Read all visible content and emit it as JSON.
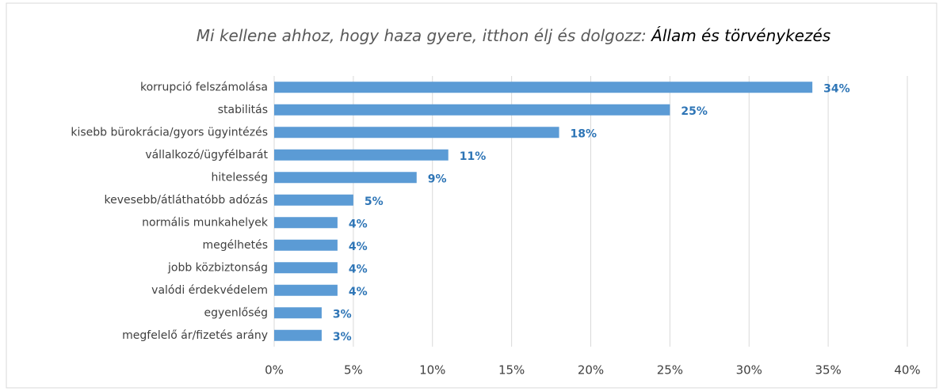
{
  "chart_data": {
    "type": "barh",
    "title": [
      "Mi kellene ahhoz, hogy haza gyere, itthon élj és dolgozz:",
      "Állam és törvénykezés"
    ],
    "categories": [
      "korrupció felszámolása",
      "stabilitás",
      "kisebb bürokrácia/gyors ügyintézés",
      "vállalkozó/ügyfélbarát",
      "hitelesség",
      "kevesebb/átláthatóbb adózás",
      "normális munkahelyek",
      "megélhetés",
      "jobb közbiztonság",
      "valódi érdekvédelem",
      "egyenlőség",
      "megfelelő ár/fizetés arány"
    ],
    "values": [
      34,
      25,
      18,
      11,
      9,
      5,
      4,
      4,
      4,
      4,
      3,
      3
    ],
    "value_labels": [
      "34%",
      "25%",
      "18%",
      "11%",
      "9%",
      "5%",
      "4%",
      "4%",
      "4%",
      "4%",
      "3%",
      "3%"
    ],
    "color": "#5b9bd5",
    "xlim": [
      0,
      40
    ],
    "xticks": [
      {
        "value": 0,
        "label": "0%"
      },
      {
        "value": 5,
        "label": "5%"
      },
      {
        "value": 10,
        "label": "10%"
      },
      {
        "value": 15,
        "label": "15%"
      },
      {
        "value": 20,
        "label": "20%"
      },
      {
        "value": 25,
        "label": "25%"
      },
      {
        "value": 30,
        "label": "30%"
      },
      {
        "value": 35,
        "label": "35%"
      },
      {
        "value": 40,
        "label": "40%"
      }
    ],
    "grid": true
  }
}
